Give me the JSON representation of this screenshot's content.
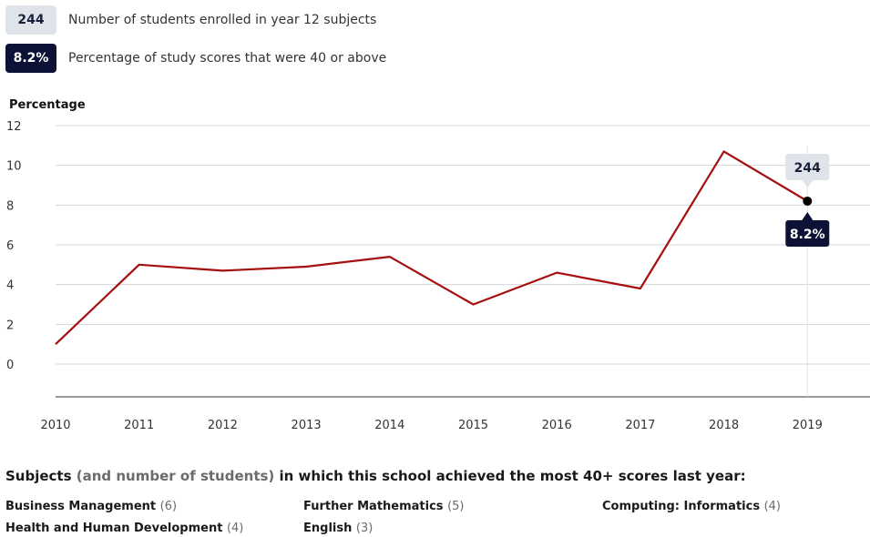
{
  "legend": {
    "enrolled_value": "244",
    "enrolled_label": "Number of students enrolled in year 12 subjects",
    "percentage_value": "8.2%",
    "percentage_label": "Percentage of study scores that were 40 or above"
  },
  "chart_data": {
    "type": "line",
    "ylabel": "Percentage",
    "x": [
      "2010",
      "2011",
      "2012",
      "2013",
      "2014",
      "2015",
      "2016",
      "2017",
      "2018",
      "2019"
    ],
    "series": [
      {
        "values": [
          1.0,
          5.0,
          4.7,
          4.9,
          5.4,
          3.0,
          4.6,
          3.8,
          10.7,
          8.2
        ]
      }
    ],
    "yticks": [
      0,
      2,
      4,
      6,
      8,
      10,
      12
    ],
    "ylim": [
      -3.2,
      12
    ],
    "grid": true,
    "colors": {
      "line": "#a50f0f",
      "grid": "#d6d6d6",
      "axis": "#333333"
    },
    "highlight": {
      "x": "2019",
      "top_label": "244",
      "bottom_label": "8.2%"
    }
  },
  "subjects": {
    "title_part1": "Subjects",
    "title_part2": "(and number of students)",
    "title_part3": "in which this school achieved the most 40+ scores last year:",
    "items": [
      {
        "name": "Business Management",
        "count": "(6)"
      },
      {
        "name": "Further Mathematics",
        "count": "(5)"
      },
      {
        "name": "Computing: Informatics",
        "count": "(4)"
      },
      {
        "name": "Health and Human Development",
        "count": "(4)"
      },
      {
        "name": "English",
        "count": "(3)"
      }
    ]
  }
}
